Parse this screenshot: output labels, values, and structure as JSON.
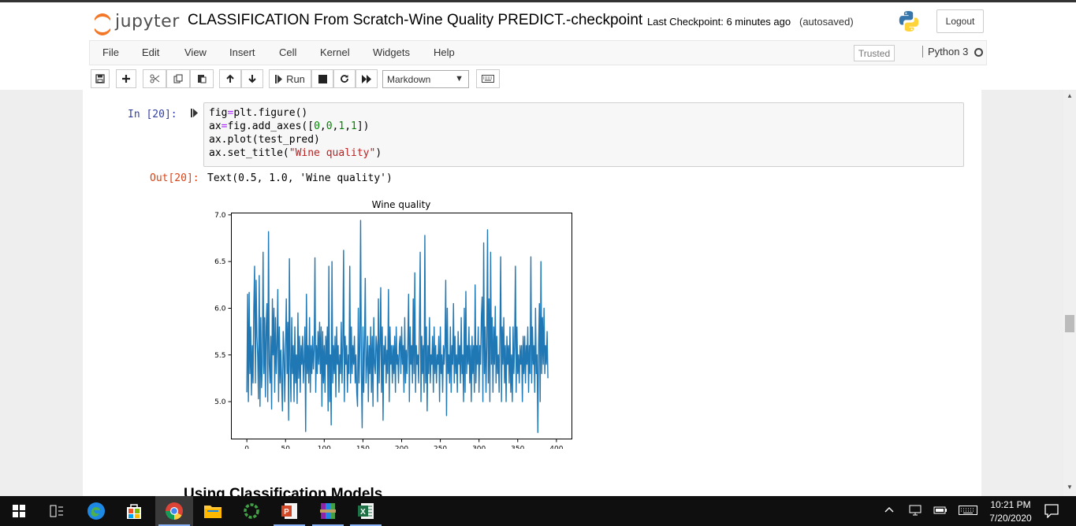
{
  "header": {
    "logo_text": "jupyter",
    "notebook_name": "CLASSIFICATION From Scratch-Wine Quality PREDICT.-checkpoint",
    "checkpoint_text": "Last Checkpoint: 6 minutes ago",
    "autosave_text": "(autosaved)",
    "logout_label": "Logout"
  },
  "menubar": {
    "items": [
      "File",
      "Edit",
      "View",
      "Insert",
      "Cell",
      "Kernel",
      "Widgets",
      "Help"
    ],
    "trusted_label": "Trusted",
    "kernel_name": "Python 3"
  },
  "toolbar": {
    "run_label": "Run",
    "cell_type": "Markdown"
  },
  "cell": {
    "in_prompt": "In [20]:",
    "code_lines": [
      "fig=plt.figure()",
      "ax=fig.add_axes([0,0,1,1])",
      "ax.plot(test_pred)",
      "ax.set_title(\"Wine quality\")"
    ],
    "out_prompt": "Out[20]:",
    "out_text": "Text(0.5, 1.0, 'Wine quality')"
  },
  "next_heading": "Using Classification Models",
  "chart_data": {
    "type": "line",
    "title": "Wine quality",
    "xlabel": "",
    "ylabel": "",
    "xlim": [
      -20,
      420
    ],
    "ylim": [
      4.6,
      7.02
    ],
    "xticks": [
      0,
      50,
      100,
      150,
      200,
      250,
      300,
      350,
      400
    ],
    "yticks": [
      5.0,
      5.5,
      6.0,
      6.5,
      7.0
    ],
    "ytick_labels": [
      "5.0",
      "5.5",
      "6.0",
      "6.5",
      "7.0"
    ],
    "grid": false,
    "series": [
      {
        "color": "#1f77b4",
        "values": [
          5.1,
          6.15,
          5.0,
          6.17,
          5.3,
          5.8,
          5.07,
          5.6,
          5.2,
          6.0,
          6.45,
          5.2,
          6.3,
          5.7,
          5.5,
          5.03,
          6.35,
          4.95,
          5.9,
          5.15,
          5.4,
          6.6,
          5.3,
          5.9,
          5.05,
          5.8,
          6.05,
          5.0,
          6.82,
          5.4,
          5.2,
          5.7,
          4.92,
          6.1,
          5.5,
          6.0,
          5.1,
          5.9,
          5.3,
          5.6,
          6.2,
          5.0,
          5.8,
          5.2,
          5.55,
          5.2,
          4.9,
          5.75,
          5.5,
          5.0,
          5.6,
          6.1,
          5.3,
          5.85,
          4.8,
          6.53,
          5.4,
          5.0,
          5.9,
          5.3,
          5.6,
          5.0,
          5.8,
          5.2,
          5.5,
          4.98,
          5.95,
          5.25,
          5.7,
          5.1,
          5.6,
          5.4,
          5.7,
          5.2,
          5.45,
          5.8,
          4.68,
          6.15,
          5.3,
          5.6,
          5.2,
          5.9,
          5.1,
          5.6,
          5.3,
          5.7,
          5.35,
          5.55,
          6.54,
          5.1,
          5.6,
          5.3,
          5.75,
          5.4,
          5.85,
          5.3,
          5.8,
          4.95,
          5.75,
          5.2,
          5.6,
          5.1,
          5.7,
          5.4,
          5.8,
          4.9,
          6.45,
          5.0,
          5.5,
          4.75,
          6.5,
          5.2,
          5.6,
          5.3,
          5.7,
          5.05,
          5.8,
          5.4,
          5.6,
          5.1,
          5.5,
          5.3,
          5.85,
          5.2,
          5.6,
          6.62,
          5.0,
          5.7,
          5.4,
          5.6,
          5.1,
          5.5,
          5.3,
          6.45,
          5.2,
          5.8,
          5.3,
          5.6,
          5.4,
          5.7,
          5.2,
          5.5,
          5.1,
          4.95,
          6.0,
          5.2,
          5.6,
          6.94,
          5.3,
          4.72,
          5.8,
          5.1,
          5.6,
          6.32,
          5.2,
          5.4,
          5.7,
          5.0,
          5.6,
          5.3,
          5.8,
          5.1,
          5.7,
          4.95,
          5.9,
          5.4,
          5.3,
          5.7,
          5.6,
          5.0,
          6.1,
          5.2,
          5.6,
          6.22,
          5.1,
          5.8,
          4.8,
          5.6,
          5.4,
          5.7,
          5.2,
          5.55,
          5.3,
          6.2,
          5.0,
          5.8,
          5.4,
          5.6,
          5.2,
          5.6,
          5.3,
          5.7,
          5.1,
          5.8,
          5.4,
          5.5,
          5.2,
          5.6,
          5.7,
          5.3,
          5.8,
          5.4,
          5.6,
          5.1,
          5.9,
          5.2,
          5.55,
          5.3,
          5.6,
          6.15,
          5.0,
          5.8,
          5.4,
          5.6,
          5.2,
          6.1,
          5.3,
          6.38,
          5.1,
          5.6,
          5.4,
          5.5,
          5.2,
          5.8,
          6.6,
          5.0,
          5.7,
          5.3,
          5.6,
          5.1,
          6.78,
          5.2,
          5.8,
          4.9,
          5.6,
          5.3,
          5.9,
          5.2,
          5.5,
          5.4,
          5.7,
          5.1,
          5.8,
          5.3,
          5.6,
          5.2,
          5.5,
          5.4,
          5.7,
          5.0,
          5.8,
          5.3,
          5.5,
          5.1,
          5.6,
          5.4,
          5.6,
          6.3,
          4.85,
          6.0,
          5.3,
          5.5,
          5.2,
          5.8,
          5.1,
          5.6,
          5.4,
          6.05,
          5.2,
          5.7,
          5.3,
          5.5,
          5.1,
          5.75,
          5.4,
          5.6,
          5.2,
          5.9,
          5.3,
          5.5,
          5.0,
          6.0,
          5.1,
          6.18,
          5.3,
          5.6,
          5.4,
          5.8,
          5.2,
          5.6,
          5.0,
          5.7,
          5.3,
          5.6,
          5.1,
          6.25,
          5.2,
          5.6,
          5.4,
          5.8,
          5.1,
          5.6,
          5.4,
          5.9,
          6.12,
          5.0,
          6.7,
          5.3,
          5.8,
          5.1,
          5.6,
          6.84,
          5.2,
          6.1,
          5.0,
          6.6,
          5.4,
          5.9,
          5.1,
          5.8,
          5.4,
          6.02,
          5.2,
          5.7,
          5.3,
          5.5,
          5.1,
          5.7,
          6.55,
          5.0,
          5.8,
          5.4,
          5.9,
          5.2,
          5.6,
          5.0,
          5.7,
          5.4,
          5.6,
          5.2,
          5.8,
          5.1,
          5.5,
          5.0,
          5.8,
          5.3,
          5.6,
          6.45,
          5.1,
          5.8,
          5.3,
          5.5,
          5.2,
          5.6,
          5.4,
          5.6,
          5.0,
          5.7,
          5.3,
          5.7,
          5.2,
          5.6,
          5.4,
          5.8,
          5.1,
          5.6,
          5.3,
          6.55,
          5.2,
          5.8,
          5.4,
          5.6,
          5.1,
          6.0,
          5.3,
          5.5,
          4.67,
          5.6,
          6.05,
          5.0,
          6.5,
          5.3,
          5.9,
          5.4,
          6.0,
          5.3,
          5.6,
          5.4,
          5.75,
          5.25
        ]
      }
    ]
  },
  "taskbar": {
    "time": "10:21 PM",
    "date": "7/20/2020"
  },
  "colors": {
    "in_prompt": "#303f9f",
    "out_prompt": "#d84315",
    "line": "#1f77b4",
    "logo_orange": "#f37726"
  }
}
